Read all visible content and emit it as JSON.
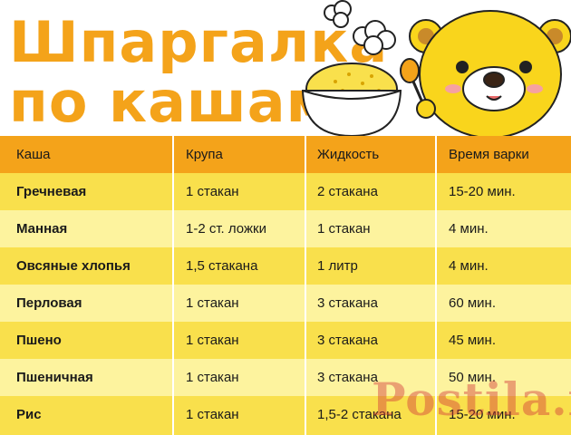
{
  "title": {
    "line1": "Шпаргалка",
    "line2": "по кашам"
  },
  "table": {
    "headers": [
      "Каша",
      "Крупа",
      "Жидкость",
      "Время варки"
    ],
    "rows": [
      [
        "Гречневая",
        "1 стакан",
        "2 стакана",
        "15-20 мин."
      ],
      [
        "Манная",
        "1-2 ст. ложки",
        "1 стакан",
        "4 мин."
      ],
      [
        "Овсяные хлопья",
        "1,5 стакана",
        "1 литр",
        "4 мин."
      ],
      [
        "Перловая",
        "1 стакан",
        "3 стакана",
        "60 мин."
      ],
      [
        "Пшено",
        "1 стакан",
        "3 стакана",
        "45 мин."
      ],
      [
        "Пшеничная",
        "1 стакан",
        "3 стакана",
        "50 мин."
      ],
      [
        "Рис",
        "1 стакан",
        "1,5-2 стакана",
        "15-20 мин."
      ]
    ]
  },
  "watermark": "Postila.ru",
  "colors": {
    "title": "#f4a31a",
    "header_row": "#f4a31a",
    "row_dark": "#f9e04c",
    "row_light": "#fdf39e",
    "bear": "#f9d51c"
  }
}
